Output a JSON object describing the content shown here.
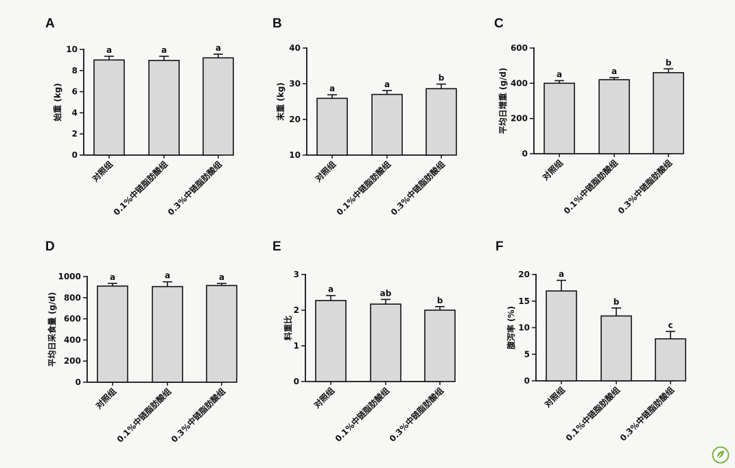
{
  "logo": {
    "icon": "leaf-badge-icon",
    "color": "#7cb342"
  },
  "chart_data": [
    {
      "panel": "A",
      "type": "bar",
      "categories": [
        "对照组",
        "0.1%中链脂肪酸组",
        "0.3%中链脂肪酸组"
      ],
      "values": [
        9.0,
        8.95,
        9.2
      ],
      "errors": [
        0.35,
        0.4,
        0.35
      ],
      "sig": [
        "a",
        "a",
        "a"
      ],
      "ylabel": "始重 (kg)",
      "ylim": [
        0,
        10
      ],
      "yticks": [
        0,
        2,
        4,
        6,
        8,
        10
      ]
    },
    {
      "panel": "B",
      "type": "bar",
      "categories": [
        "对照组",
        "0.1%中链脂肪酸组",
        "0.3%中链脂肪酸组"
      ],
      "values": [
        25.9,
        27.0,
        28.6
      ],
      "errors": [
        1.0,
        1.1,
        1.3
      ],
      "sig": [
        "a",
        "a",
        "b"
      ],
      "ylabel": "末重 (kg)",
      "ylim": [
        10,
        40
      ],
      "yticks": [
        10,
        20,
        30,
        40
      ]
    },
    {
      "panel": "C",
      "type": "bar",
      "categories": [
        "对照组",
        "0.1%中链脂肪酸组",
        "0.3%中链脂肪酸组"
      ],
      "values": [
        400,
        420,
        460
      ],
      "errors": [
        15,
        12,
        22
      ],
      "sig": [
        "a",
        "a",
        "b"
      ],
      "ylabel": "平均日增重 (g/d)",
      "ylim": [
        0,
        600
      ],
      "yticks": [
        0,
        200,
        400,
        600
      ]
    },
    {
      "panel": "D",
      "type": "bar",
      "categories": [
        "对照组",
        "0.1%中链脂肪酸组",
        "0.3%中链脂肪酸组"
      ],
      "values": [
        910,
        905,
        915
      ],
      "errors": [
        25,
        45,
        20
      ],
      "sig": [
        "a",
        "a",
        "a"
      ],
      "ylabel": "平均日采食量 (g/d)",
      "ylim": [
        0,
        1000
      ],
      "yticks": [
        0,
        200,
        400,
        600,
        800,
        1000
      ]
    },
    {
      "panel": "E",
      "type": "bar",
      "categories": [
        "对照组",
        "0.1%中链脂肪酸组",
        "0.3%中链脂肪酸组"
      ],
      "values": [
        2.27,
        2.17,
        2.0
      ],
      "errors": [
        0.14,
        0.13,
        0.1
      ],
      "sig": [
        "a",
        "ab",
        "b"
      ],
      "ylabel": "料重比",
      "ylim": [
        0,
        3
      ],
      "yticks": [
        0,
        1,
        2,
        3
      ]
    },
    {
      "panel": "F",
      "type": "bar",
      "categories": [
        "对照组",
        "0.1%中链脂肪酸组",
        "0.3%中链脂肪酸组"
      ],
      "values": [
        16.9,
        12.2,
        7.9
      ],
      "errors": [
        2.0,
        1.5,
        1.4
      ],
      "sig": [
        "a",
        "b",
        "c"
      ],
      "ylabel": "腹泻率 (%)",
      "ylim": [
        0,
        20
      ],
      "yticks": [
        0,
        5,
        10,
        15,
        20
      ]
    }
  ]
}
